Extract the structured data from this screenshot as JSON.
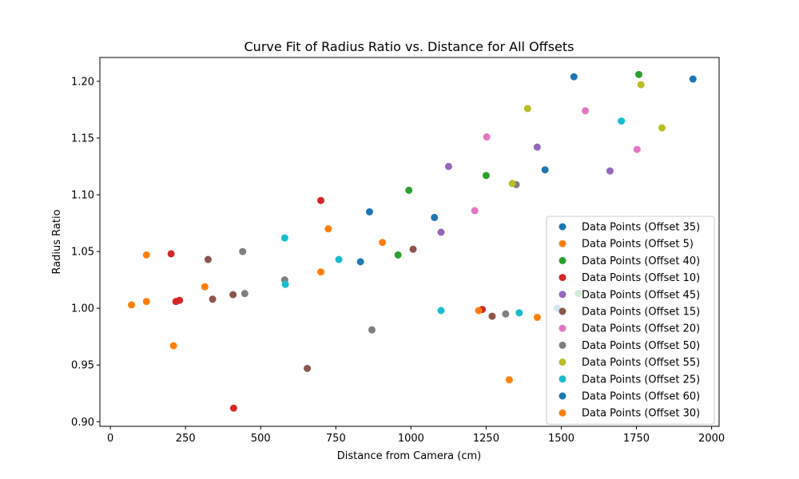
{
  "chart_data": {
    "type": "scatter",
    "title": "Curve Fit of Radius Ratio vs. Distance for All Offsets",
    "xlabel": "Distance from Camera (cm)",
    "ylabel": "Radius Ratio",
    "xlim": [
      -35,
      2025
    ],
    "ylim": [
      0.896,
      1.221
    ],
    "xticks": [
      0,
      250,
      500,
      750,
      1000,
      1250,
      1500,
      1750,
      2000
    ],
    "xtick_labels": [
      "0",
      "250",
      "500",
      "750",
      "1000",
      "1250",
      "1500",
      "1750",
      "2000"
    ],
    "yticks": [
      0.9,
      0.95,
      1.0,
      1.05,
      1.1,
      1.15,
      1.2
    ],
    "ytick_labels": [
      "0.90",
      "0.95",
      "1.00",
      "1.05",
      "1.10",
      "1.15",
      "1.20"
    ],
    "grid": false,
    "legend_position": "lower-right",
    "series": [
      {
        "name": "Data Points (Offset 35)",
        "color": "#1f77b4",
        "points": [
          [
            862,
            1.085
          ],
          [
            1078,
            1.08
          ],
          [
            1446,
            1.122
          ],
          [
            1542,
            1.204
          ]
        ]
      },
      {
        "name": "Data Points (Offset 5)",
        "color": "#ff7f0e",
        "points": [
          [
            70,
            1.003
          ],
          [
            120,
            1.006
          ],
          [
            120,
            1.047
          ],
          [
            210,
            0.967
          ],
          [
            314,
            1.019
          ],
          [
            700,
            1.032
          ],
          [
            725,
            1.07
          ],
          [
            905,
            1.058
          ]
        ]
      },
      {
        "name": "Data Points (Offset 40)",
        "color": "#2ca02c",
        "points": [
          [
            957,
            1.047
          ],
          [
            993,
            1.104
          ],
          [
            1250,
            1.117
          ],
          [
            1557,
            1.013
          ],
          [
            1758,
            1.206
          ]
        ]
      },
      {
        "name": "Data Points (Offset 10)",
        "color": "#d62728",
        "points": [
          [
            202,
            1.048
          ],
          [
            218,
            1.006
          ],
          [
            230,
            1.007
          ],
          [
            410,
            0.912
          ],
          [
            700,
            1.095
          ],
          [
            1237,
            0.999
          ]
        ]
      },
      {
        "name": "Data Points (Offset 45)",
        "color": "#9467bd",
        "points": [
          [
            1100,
            1.067
          ],
          [
            1125,
            1.125
          ],
          [
            1420,
            1.142
          ],
          [
            1662,
            1.121
          ]
        ]
      },
      {
        "name": "Data Points (Offset 15)",
        "color": "#8c564b",
        "points": [
          [
            325,
            1.043
          ],
          [
            340,
            1.008
          ],
          [
            408,
            1.012
          ],
          [
            655,
            0.947
          ],
          [
            1007,
            1.052
          ],
          [
            1270,
            0.993
          ]
        ]
      },
      {
        "name": "Data Points (Offset 20)",
        "color": "#e377c2",
        "points": [
          [
            1212,
            1.086
          ],
          [
            1252,
            1.151
          ],
          [
            1580,
            1.174
          ],
          [
            1752,
            1.14
          ]
        ]
      },
      {
        "name": "Data Points (Offset 50)",
        "color": "#7f7f7f",
        "points": [
          [
            440,
            1.05
          ],
          [
            447,
            1.013
          ],
          [
            580,
            1.025
          ],
          [
            870,
            0.981
          ],
          [
            1315,
            0.995
          ],
          [
            1350,
            1.109
          ]
        ]
      },
      {
        "name": "Data Points (Offset 55)",
        "color": "#bcbd22",
        "points": [
          [
            1337,
            1.11
          ],
          [
            1388,
            1.176
          ],
          [
            1765,
            1.197
          ],
          [
            1835,
            1.159
          ]
        ]
      },
      {
        "name": "Data Points (Offset 25)",
        "color": "#17becf",
        "points": [
          [
            580,
            1.062
          ],
          [
            582,
            1.021
          ],
          [
            760,
            1.043
          ],
          [
            1100,
            0.998
          ],
          [
            1360,
            0.996
          ],
          [
            1700,
            1.165
          ]
        ]
      },
      {
        "name": "Data Points (Offset 60)",
        "color": "#1f77b4",
        "points": [
          [
            832,
            1.041
          ],
          [
            1487,
            1.0
          ],
          [
            1938,
            1.202
          ]
        ]
      },
      {
        "name": "Data Points (Offset 30)",
        "color": "#ff7f0e",
        "points": [
          [
            1225,
            0.998
          ],
          [
            1327,
            0.937
          ],
          [
            1420,
            0.992
          ]
        ]
      }
    ]
  }
}
